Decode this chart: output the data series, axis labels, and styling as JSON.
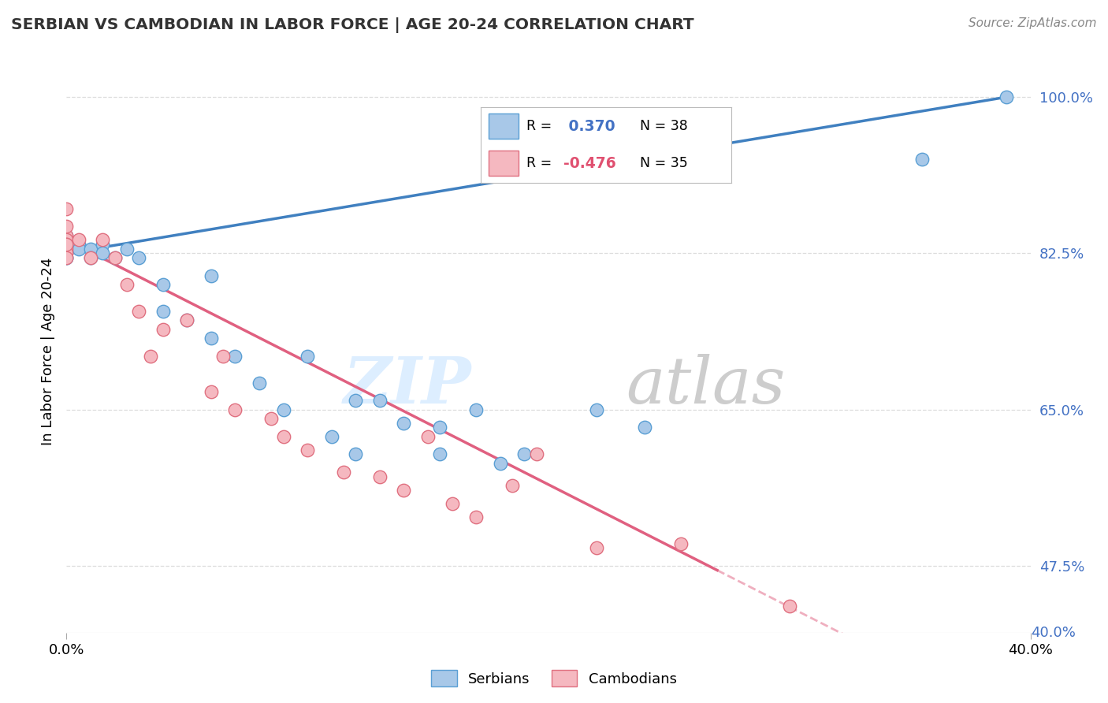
{
  "title": "SERBIAN VS CAMBODIAN IN LABOR FORCE | AGE 20-24 CORRELATION CHART",
  "source_text": "Source: ZipAtlas.com",
  "ylabel": "In Labor Force | Age 20-24",
  "xmin": 0.0,
  "xmax": 0.4,
  "ymin": 0.4,
  "ymax": 1.03,
  "ytick_values": [
    1.0,
    0.825,
    0.65,
    0.475
  ],
  "ytick_bottom": 0.4,
  "legend_r_serbian": "0.370",
  "legend_n_serbian": "38",
  "legend_r_cambodian": "-0.476",
  "legend_n_cambodian": "35",
  "serbian_x": [
    0.0,
    0.0,
    0.0,
    0.0,
    0.0,
    0.0,
    0.005,
    0.005,
    0.01,
    0.01,
    0.015,
    0.015,
    0.02,
    0.025,
    0.03,
    0.04,
    0.04,
    0.05,
    0.06,
    0.06,
    0.07,
    0.08,
    0.09,
    0.1,
    0.11,
    0.12,
    0.12,
    0.13,
    0.14,
    0.155,
    0.155,
    0.17,
    0.18,
    0.19,
    0.22,
    0.24,
    0.355,
    0.39
  ],
  "serbian_y": [
    0.845,
    0.835,
    0.83,
    0.825,
    0.82,
    0.82,
    0.835,
    0.83,
    0.83,
    0.82,
    0.835,
    0.825,
    0.82,
    0.83,
    0.82,
    0.79,
    0.76,
    0.75,
    0.8,
    0.73,
    0.71,
    0.68,
    0.65,
    0.71,
    0.62,
    0.66,
    0.6,
    0.66,
    0.635,
    0.63,
    0.6,
    0.65,
    0.59,
    0.6,
    0.65,
    0.63,
    0.93,
    1.0
  ],
  "cambodian_x": [
    0.0,
    0.0,
    0.0,
    0.0,
    0.0,
    0.0,
    0.0,
    0.0,
    0.0,
    0.005,
    0.01,
    0.015,
    0.02,
    0.025,
    0.03,
    0.035,
    0.04,
    0.05,
    0.06,
    0.065,
    0.07,
    0.085,
    0.09,
    0.1,
    0.115,
    0.13,
    0.14,
    0.15,
    0.16,
    0.17,
    0.185,
    0.195,
    0.22,
    0.255,
    0.3
  ],
  "cambodian_y": [
    0.845,
    0.855,
    0.875,
    0.84,
    0.835,
    0.83,
    0.825,
    0.82,
    0.835,
    0.84,
    0.82,
    0.84,
    0.82,
    0.79,
    0.76,
    0.71,
    0.74,
    0.75,
    0.67,
    0.71,
    0.65,
    0.64,
    0.62,
    0.605,
    0.58,
    0.575,
    0.56,
    0.62,
    0.545,
    0.53,
    0.565,
    0.6,
    0.495,
    0.5,
    0.43
  ],
  "serbian_color": "#a8c8e8",
  "serbian_edge": "#5a9fd4",
  "cambodian_color": "#f5b8c0",
  "cambodian_edge": "#e07080",
  "trend_serbian_color": "#4080c0",
  "trend_cambodian_color": "#e06080",
  "watermark_zip_color": "#ddeeff",
  "watermark_atlas_color": "#c8c8c8",
  "background_color": "#ffffff",
  "grid_color": "#dddddd",
  "tick_color": "#4472c4",
  "title_color": "#333333",
  "source_color": "#888888"
}
